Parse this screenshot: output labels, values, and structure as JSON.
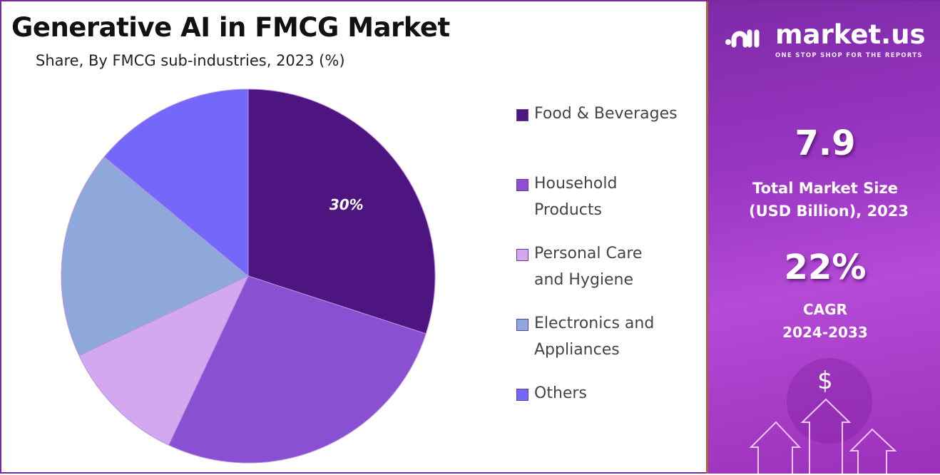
{
  "chart_data": {
    "type": "pie",
    "title": "Generative AI in FMCG Market",
    "subtitle": "Share, By FMCG sub-industries, 2023 (%)",
    "categories": [
      "Food & Beverages",
      "Household Products",
      "Personal Care and Hygiene",
      "Electronics and Appliances",
      "Others"
    ],
    "legend_lines": [
      [
        "Food & Beverages"
      ],
      [
        "Household",
        "Products"
      ],
      [
        "Personal Care",
        "and Hygiene"
      ],
      [
        "Electronics and",
        "Appliances"
      ],
      [
        "Others"
      ]
    ],
    "values": [
      30,
      27,
      11,
      18,
      14
    ],
    "colors": [
      "#4e1580",
      "#8a50d2",
      "#d3a8ef",
      "#8fa8dc",
      "#7368fa"
    ],
    "data_labels": [
      "30%",
      "",
      "",
      "",
      ""
    ],
    "legend_position": "right"
  },
  "panel": {
    "brand": "market.us",
    "tagline": "ONE STOP SHOP FOR THE REPORTS",
    "market_size": "7.9",
    "market_size_label_1": "Total Market Size",
    "market_size_label_2": "(USD Billion), 2023",
    "cagr": "22%",
    "cagr_label_1": "CAGR",
    "cagr_label_2": "2024-2033",
    "dollar": "$"
  }
}
